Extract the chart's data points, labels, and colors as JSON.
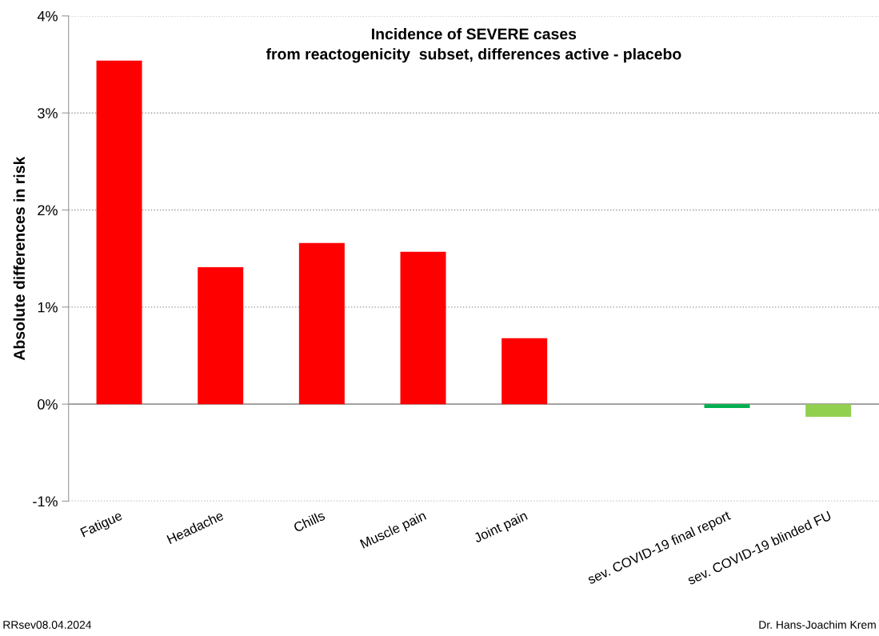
{
  "chart_data": {
    "type": "bar",
    "title": "Incidence of SEVERE cases\nfrom reactogenicity  subset, differences active - placebo",
    "ylabel": "Absolute differences in risk",
    "categories": [
      "Fatigue",
      "Headache",
      "Chills",
      "Muscle pain",
      "Joint pain",
      null,
      "sev. COVID-19 final report",
      "sev. COVID-19 blinded FU"
    ],
    "values": [
      3.54,
      1.41,
      1.66,
      1.57,
      0.68,
      null,
      -0.04,
      -0.13
    ],
    "colors": [
      "#ff0000",
      "#ff0000",
      "#ff0000",
      "#ff0000",
      "#ff0000",
      "#ff0000",
      "#00b050",
      "#92d050"
    ],
    "ylim": [
      -1,
      4
    ],
    "yticks": [
      {
        "value": -1,
        "label": "-1%"
      },
      {
        "value": 0,
        "label": "0%"
      },
      {
        "value": 1,
        "label": "1%"
      },
      {
        "value": 2,
        "label": "2%"
      },
      {
        "value": 3,
        "label": "3%"
      },
      {
        "value": 4,
        "label": "4%"
      }
    ],
    "grid": "y",
    "annotations": [
      "RRsev08.04.2024",
      "Dr. Hans-Joachim Krem"
    ]
  }
}
